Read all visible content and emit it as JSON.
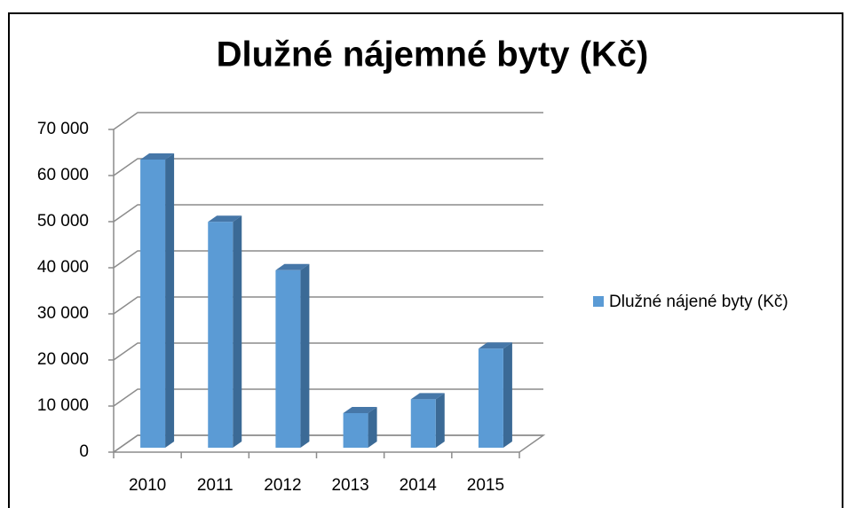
{
  "chart_data": {
    "type": "bar3d",
    "title": "Dlužné nájemné byty (Kč)",
    "categories": [
      "2010",
      "2011",
      "2012",
      "2013",
      "2014",
      "2015"
    ],
    "series": [
      {
        "name": "Dlužné nájené byty (Kč)",
        "color": "#5b9bd5",
        "values": [
          62500,
          49000,
          38500,
          7500,
          10500,
          21500
        ]
      }
    ],
    "ylim": [
      0,
      70000
    ],
    "yticks": [
      0,
      {
        "value": 10000,
        "label": "10 000"
      },
      {
        "value": 20000,
        "label": "20 000"
      },
      {
        "value": 30000,
        "label": "30 000"
      },
      {
        "value": 40000,
        "label": "40 000"
      },
      {
        "value": 50000,
        "label": "50 000"
      },
      {
        "value": 60000,
        "label": "60 000"
      },
      {
        "value": 70000,
        "label": "70 000"
      }
    ],
    "grid": true,
    "legend": "right"
  }
}
